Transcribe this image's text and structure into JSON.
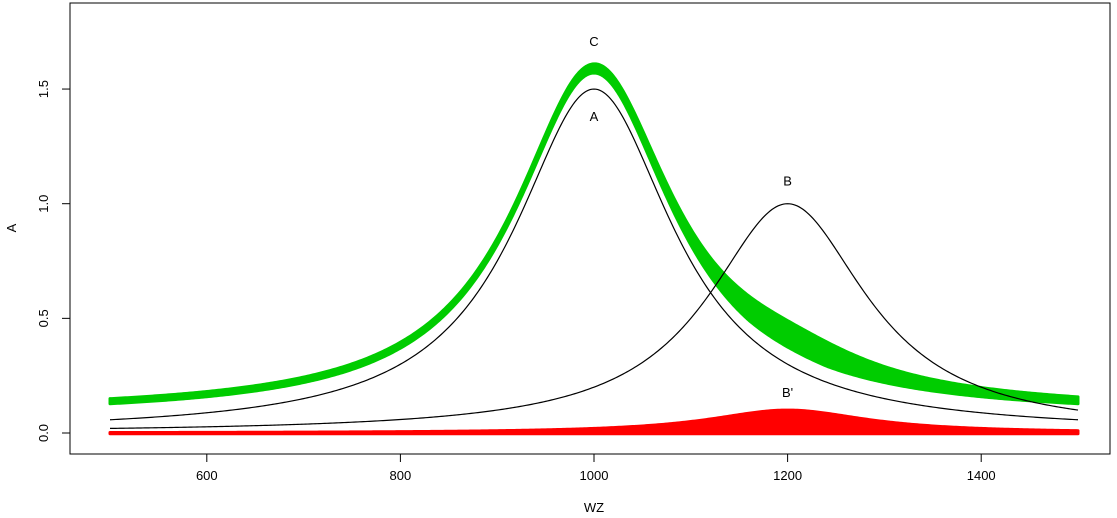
{
  "chart_data": {
    "type": "line",
    "xlabel": "WZ",
    "ylabel": "A",
    "xlim": [
      500,
      1500
    ],
    "ylim": [
      0,
      1.75
    ],
    "x_ticks": [
      600,
      800,
      1000,
      1200,
      1400
    ],
    "y_ticks": [
      0.0,
      0.5,
      1.0,
      1.5
    ],
    "y_tick_labels": [
      "0.0",
      "0.5",
      "1.0",
      "1.5"
    ],
    "grid": false,
    "series": [
      {
        "label": "A",
        "color": "#000000",
        "peak_x": 1000,
        "peak_y": 1.5,
        "half_width": 100,
        "band": false
      },
      {
        "label": "B",
        "color": "#000000",
        "peak_x": 1200,
        "peak_y": 1.0,
        "half_width": 100,
        "band": false
      },
      {
        "label": "C",
        "color": "#00cc00",
        "band": true,
        "components": [
          "A",
          "B'"
        ]
      },
      {
        "label": "B'",
        "color": "#ff0000",
        "peak_x": 1200,
        "peak_y": 0.1,
        "half_width": 100,
        "band": true
      }
    ]
  }
}
